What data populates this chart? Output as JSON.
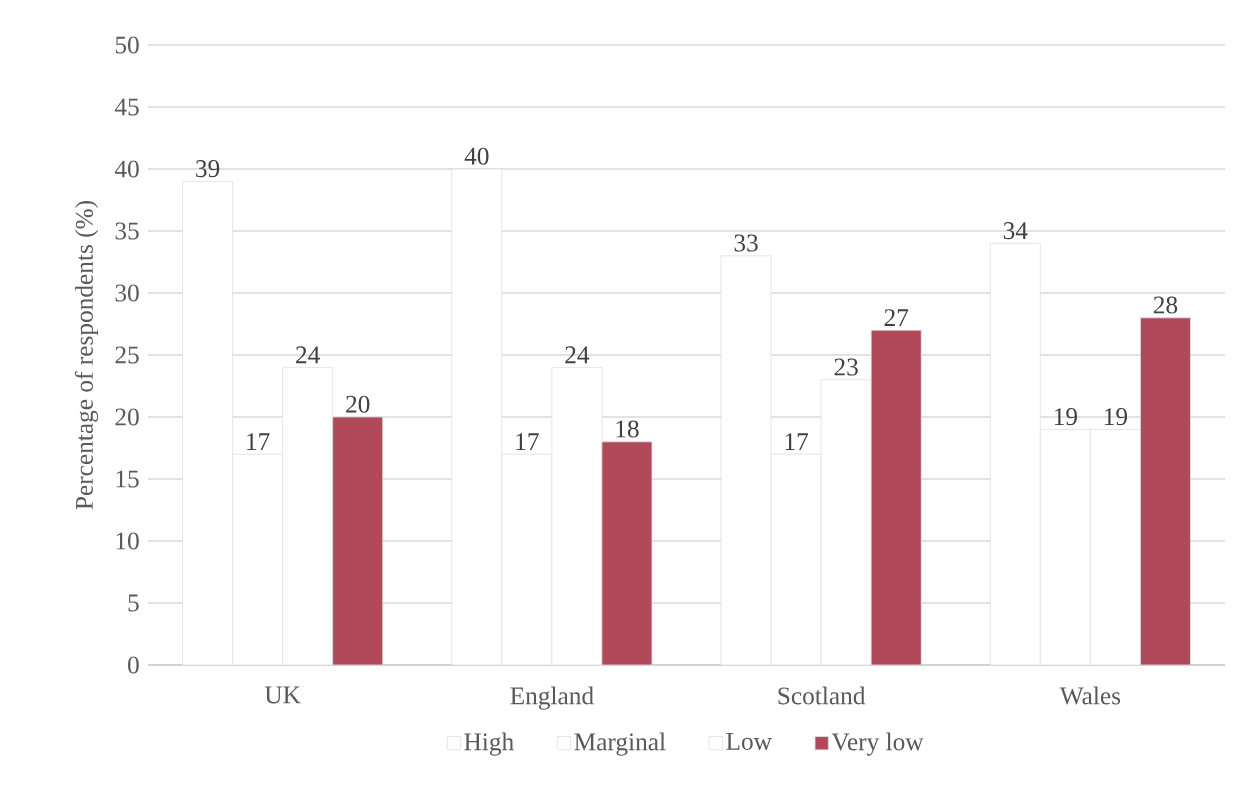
{
  "chart_data": {
    "type": "bar",
    "ylabel": "Percentage of respondents (%)",
    "categories": [
      "UK",
      "England",
      "Scotland",
      "Wales"
    ],
    "series": [
      {
        "name": "High",
        "color": "#ffffff",
        "values": [
          39,
          40,
          33,
          34
        ]
      },
      {
        "name": "Marginal",
        "color": "#ffffff",
        "values": [
          17,
          17,
          17,
          19
        ]
      },
      {
        "name": "Low",
        "color": "#ffffff",
        "values": [
          24,
          24,
          23,
          19
        ]
      },
      {
        "name": "Very low",
        "color": "#b04a5a",
        "values": [
          20,
          18,
          27,
          28
        ]
      }
    ],
    "ylim": [
      0,
      50
    ],
    "yticks": [
      0,
      5,
      10,
      15,
      20,
      25,
      30,
      35,
      40,
      45,
      50
    ],
    "grid": "y",
    "legend": "bottom",
    "data_labels": true
  }
}
